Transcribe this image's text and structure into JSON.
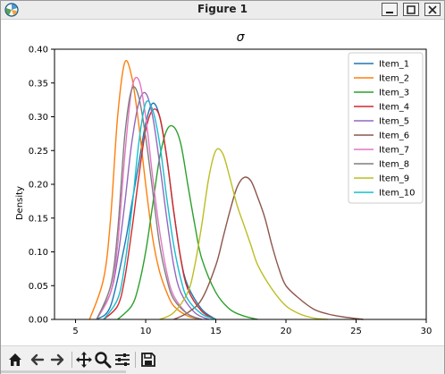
{
  "window": {
    "title": "Figure 1",
    "controls": [
      "minimize",
      "maximize",
      "close"
    ]
  },
  "toolbar": {
    "tools": [
      "home-icon",
      "back-icon",
      "forward-icon",
      "pan-icon",
      "zoom-icon",
      "configure-subplots-icon",
      "save-icon"
    ]
  },
  "chart_data": {
    "type": "line",
    "title": "σ",
    "xlabel": "",
    "ylabel": "Density",
    "xlim": [
      3.5,
      30
    ],
    "ylim": [
      0,
      0.4
    ],
    "xticks": [
      5,
      10,
      15,
      20,
      25,
      30
    ],
    "yticks": [
      0.0,
      0.05,
      0.1,
      0.15,
      0.2,
      0.25,
      0.3,
      0.35,
      0.4
    ],
    "grid": false,
    "legend_position": "top-right",
    "series": [
      {
        "name": "Item_1",
        "color": "#1f77b4",
        "x": [
          6.5,
          7.5,
          8.5,
          9.0,
          9.5,
          10.0,
          10.5,
          11.0,
          11.5,
          12.0,
          12.5,
          13.0,
          14.0,
          15.0
        ],
        "y": [
          0.0,
          0.02,
          0.11,
          0.17,
          0.23,
          0.29,
          0.32,
          0.3,
          0.24,
          0.16,
          0.09,
          0.05,
          0.015,
          0.0
        ]
      },
      {
        "name": "Item_2",
        "color": "#ff7f0e",
        "x": [
          6.0,
          7.0,
          7.5,
          8.0,
          8.5,
          9.0,
          9.5,
          10.0,
          10.5,
          11.0,
          11.5,
          12.0,
          13.0,
          14.0
        ],
        "y": [
          0.0,
          0.06,
          0.15,
          0.3,
          0.38,
          0.36,
          0.29,
          0.2,
          0.12,
          0.07,
          0.04,
          0.02,
          0.005,
          0.0
        ]
      },
      {
        "name": "Item_3",
        "color": "#2ca02c",
        "x": [
          8.0,
          9.0,
          9.5,
          10.0,
          10.5,
          11.0,
          11.5,
          12.0,
          12.5,
          13.0,
          13.5,
          14.0,
          15.0,
          16.0,
          17.0,
          18.0
        ],
        "y": [
          0.0,
          0.02,
          0.05,
          0.1,
          0.17,
          0.24,
          0.28,
          0.285,
          0.26,
          0.2,
          0.14,
          0.09,
          0.04,
          0.015,
          0.005,
          0.0
        ]
      },
      {
        "name": "Item_4",
        "color": "#d62728",
        "x": [
          7.0,
          8.0,
          8.5,
          9.0,
          9.5,
          10.0,
          10.5,
          11.0,
          11.5,
          12.0,
          12.5,
          13.0,
          14.0,
          15.0
        ],
        "y": [
          0.0,
          0.02,
          0.06,
          0.13,
          0.21,
          0.28,
          0.31,
          0.3,
          0.24,
          0.16,
          0.09,
          0.045,
          0.012,
          0.0
        ]
      },
      {
        "name": "Item_5",
        "color": "#9467bd",
        "x": [
          6.5,
          7.5,
          8.0,
          8.5,
          9.0,
          9.5,
          10.0,
          10.5,
          11.0,
          11.5,
          12.0,
          12.5,
          13.5,
          14.5
        ],
        "y": [
          0.0,
          0.04,
          0.09,
          0.17,
          0.26,
          0.32,
          0.335,
          0.3,
          0.23,
          0.15,
          0.08,
          0.04,
          0.01,
          0.0
        ]
      },
      {
        "name": "Item_6",
        "color": "#8c564b",
        "x": [
          12.0,
          13.0,
          14.0,
          15.0,
          15.5,
          16.0,
          16.5,
          17.0,
          17.5,
          18.0,
          18.5,
          19.0,
          19.5,
          20.0,
          21.0,
          22.0,
          23.0,
          24.0,
          25.5
        ],
        "y": [
          0.0,
          0.01,
          0.03,
          0.08,
          0.12,
          0.16,
          0.195,
          0.21,
          0.205,
          0.18,
          0.15,
          0.11,
          0.075,
          0.05,
          0.03,
          0.015,
          0.008,
          0.004,
          0.0
        ]
      },
      {
        "name": "Item_7",
        "color": "#e377c2",
        "x": [
          6.5,
          7.5,
          8.0,
          8.5,
          9.0,
          9.5,
          10.0,
          10.5,
          11.0,
          11.5,
          12.0,
          13.0,
          14.0
        ],
        "y": [
          0.0,
          0.04,
          0.11,
          0.24,
          0.34,
          0.355,
          0.3,
          0.21,
          0.13,
          0.07,
          0.035,
          0.008,
          0.0
        ]
      },
      {
        "name": "Item_8",
        "color": "#7f7f7f",
        "x": [
          6.5,
          7.5,
          8.0,
          8.5,
          9.0,
          9.5,
          10.0,
          10.5,
          11.0,
          11.5,
          12.0,
          13.0,
          14.0
        ],
        "y": [
          0.0,
          0.05,
          0.13,
          0.27,
          0.34,
          0.33,
          0.27,
          0.19,
          0.11,
          0.06,
          0.03,
          0.008,
          0.0
        ]
      },
      {
        "name": "Item_9",
        "color": "#bcbd22",
        "x": [
          11.0,
          12.0,
          13.0,
          13.5,
          14.0,
          14.5,
          15.0,
          15.5,
          16.0,
          16.5,
          17.0,
          17.5,
          18.0,
          19.0,
          20.0,
          21.0,
          22.0,
          23.0
        ],
        "y": [
          0.0,
          0.01,
          0.04,
          0.08,
          0.14,
          0.21,
          0.25,
          0.245,
          0.21,
          0.17,
          0.14,
          0.11,
          0.08,
          0.045,
          0.02,
          0.008,
          0.002,
          0.0
        ]
      },
      {
        "name": "Item_10",
        "color": "#17becf",
        "x": [
          7.0,
          8.0,
          8.5,
          9.0,
          9.5,
          10.0,
          10.5,
          11.0,
          11.5,
          12.0,
          12.5,
          13.0,
          14.0,
          15.0
        ],
        "y": [
          0.0,
          0.03,
          0.08,
          0.16,
          0.26,
          0.32,
          0.31,
          0.26,
          0.18,
          0.11,
          0.06,
          0.03,
          0.008,
          0.0
        ]
      }
    ]
  }
}
